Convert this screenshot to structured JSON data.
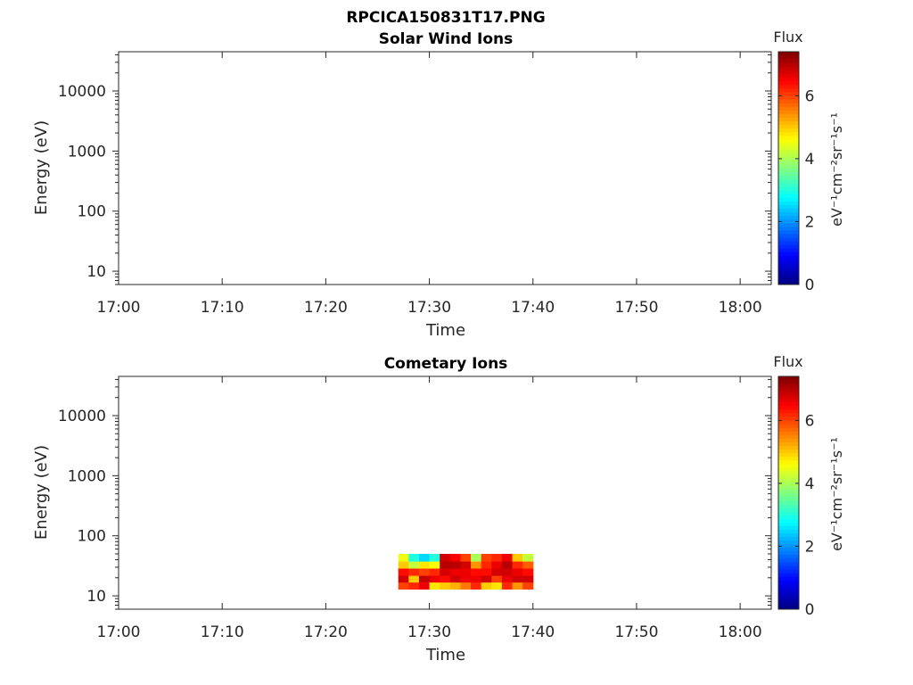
{
  "figure_title": "RPCICA150831T17.PNG",
  "chart_data": [
    {
      "type": "heatmap",
      "title": "Solar Wind Ions",
      "xlabel": "Time",
      "ylabel": "Energy (eV)",
      "y_scale": "log",
      "xlim": [
        "17:00",
        "18:03"
      ],
      "ylim": [
        6,
        45000
      ],
      "x_ticks": [
        "17:00",
        "17:10",
        "17:20",
        "17:30",
        "17:40",
        "17:50",
        "18:00"
      ],
      "y_ticks": [
        "10",
        "100",
        "1000",
        "10000"
      ],
      "colorbar": {
        "label": "Flux",
        "unit_label": "eV⁻¹cm⁻²sr⁻¹s⁻¹",
        "range": [
          0,
          7.4
        ],
        "ticks": [
          "0",
          "2",
          "4",
          "6"
        ],
        "colormap": "jet"
      },
      "cells": []
    },
    {
      "type": "heatmap",
      "title": "Cometary Ions",
      "xlabel": "Time",
      "ylabel": "Energy (eV)",
      "y_scale": "log",
      "xlim": [
        "17:00",
        "18:03"
      ],
      "ylim": [
        6,
        45000
      ],
      "x_ticks": [
        "17:00",
        "17:10",
        "17:20",
        "17:30",
        "17:40",
        "17:50",
        "18:00"
      ],
      "y_ticks": [
        "10",
        "100",
        "1000",
        "10000"
      ],
      "colorbar": {
        "label": "Flux",
        "unit_label": "eV⁻¹cm⁻²sr⁻¹s⁻¹",
        "range": [
          0,
          7.4
        ],
        "ticks": [
          "0",
          "2",
          "4",
          "6"
        ],
        "colormap": "jet"
      },
      "energy_bins": [
        {
          "lo": 13,
          "hi": 17
        },
        {
          "lo": 17,
          "hi": 22
        },
        {
          "lo": 22,
          "hi": 29
        },
        {
          "lo": 29,
          "hi": 38
        },
        {
          "lo": 38,
          "hi": 50
        }
      ],
      "time_bins": [
        {
          "t0": "17:27",
          "t1": "17:28",
          "flux": [
            6.0,
            6.8,
            6.4,
            5.0,
            4.5
          ]
        },
        {
          "t0": "17:28",
          "t1": "17:29",
          "flux": [
            6.2,
            5.0,
            6.2,
            4.2,
            3.0
          ]
        },
        {
          "t0": "17:29",
          "t1": "17:30",
          "flux": [
            6.6,
            6.9,
            6.0,
            4.8,
            2.5
          ]
        },
        {
          "t0": "17:30",
          "t1": "17:31",
          "flux": [
            4.8,
            6.6,
            6.2,
            4.6,
            3.0
          ]
        },
        {
          "t0": "17:31",
          "t1": "17:32",
          "flux": [
            5.0,
            6.4,
            6.8,
            7.0,
            6.8
          ]
        },
        {
          "t0": "17:32",
          "t1": "17:33",
          "flux": [
            5.2,
            6.8,
            6.6,
            7.0,
            6.5
          ]
        },
        {
          "t0": "17:33",
          "t1": "17:34",
          "flux": [
            5.6,
            6.6,
            6.6,
            6.8,
            6.0
          ]
        },
        {
          "t0": "17:34",
          "t1": "17:35",
          "flux": [
            6.2,
            6.6,
            6.4,
            5.4,
            4.0
          ]
        },
        {
          "t0": "17:35",
          "t1": "17:36",
          "flux": [
            5.0,
            6.8,
            6.4,
            6.2,
            6.0
          ]
        },
        {
          "t0": "17:36",
          "t1": "17:37",
          "flux": [
            4.8,
            6.0,
            6.8,
            6.6,
            6.2
          ]
        },
        {
          "t0": "17:37",
          "t1": "17:38",
          "flux": [
            6.2,
            6.6,
            6.8,
            7.0,
            6.6
          ]
        },
        {
          "t0": "17:38",
          "t1": "17:39",
          "flux": [
            5.4,
            6.8,
            6.6,
            6.2,
            5.0
          ]
        },
        {
          "t0": "17:39",
          "t1": "17:40",
          "flux": [
            6.0,
            6.8,
            6.4,
            5.8,
            4.2
          ]
        }
      ]
    }
  ]
}
